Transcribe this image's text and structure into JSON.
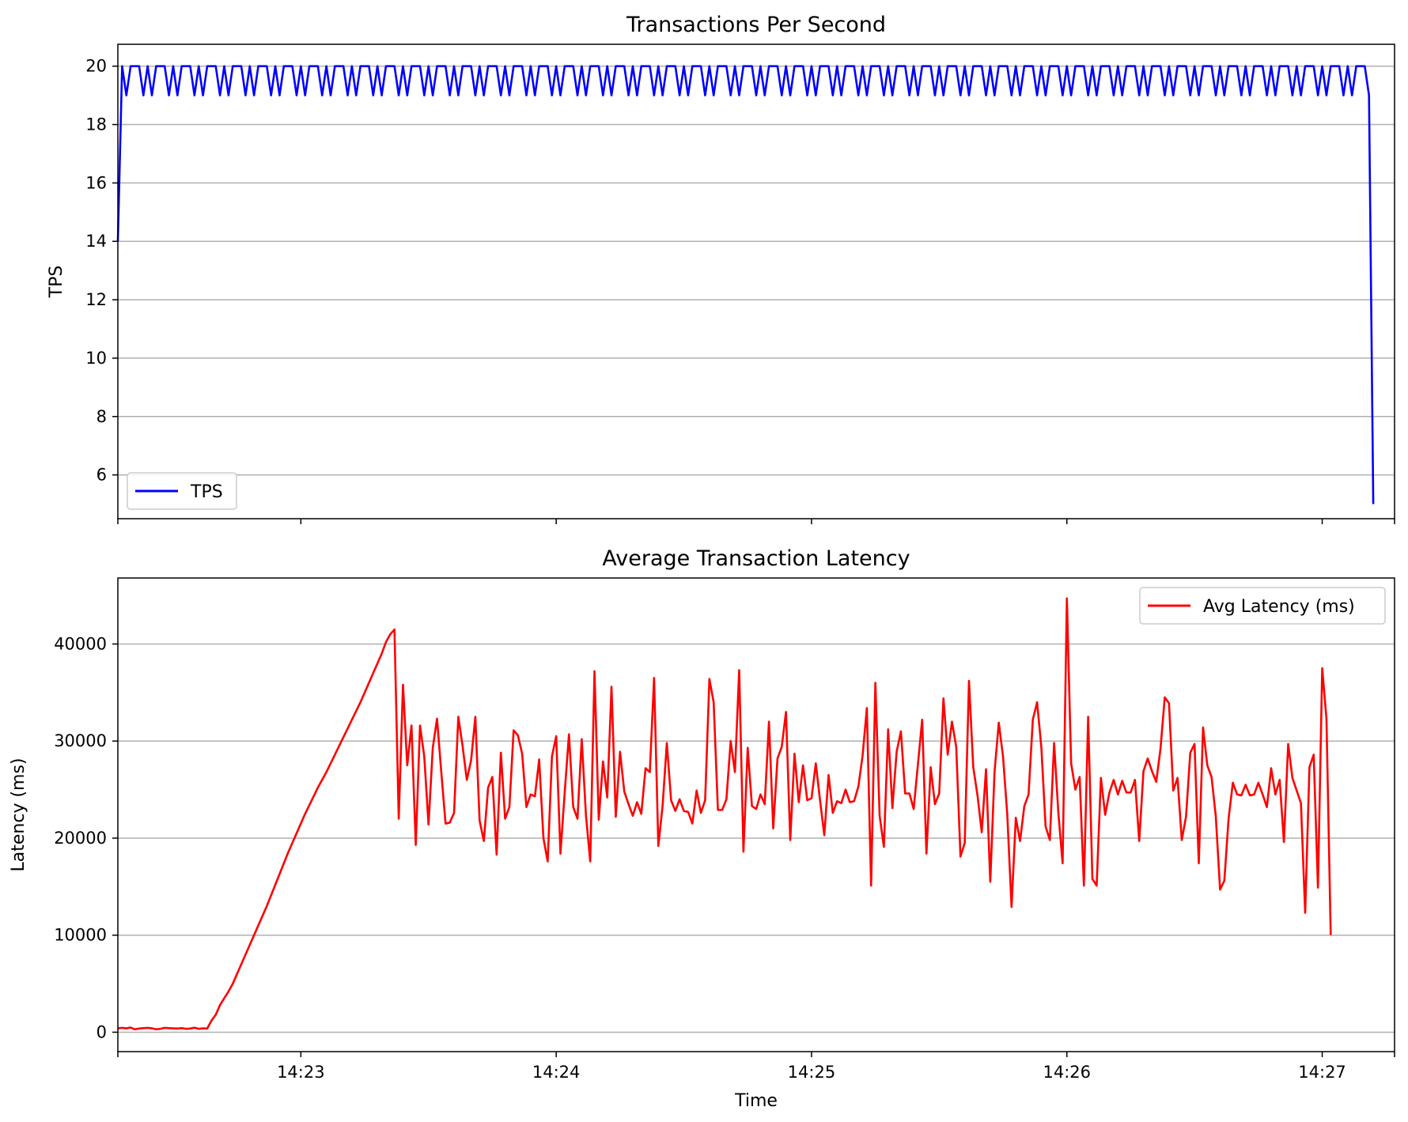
{
  "chart_data": [
    {
      "type": "line",
      "title": "Transactions Per Second",
      "xlabel": "",
      "ylabel": "TPS",
      "ylim": [
        4.5,
        20.75
      ],
      "yticks": [
        6,
        8,
        10,
        12,
        14,
        16,
        18,
        20
      ],
      "xlim": [
        "14:22:17",
        "14:27:17"
      ],
      "xticks": [
        "14:23",
        "14:24",
        "14:25",
        "14:26",
        "14:27"
      ],
      "grid": "horizontal",
      "legend_position": "lower-left",
      "series": [
        {
          "name": "TPS",
          "color": "#0000ff",
          "start": "14:22:17",
          "step_seconds": 1,
          "values": [
            14,
            20,
            19,
            20,
            20,
            20,
            19,
            20,
            19,
            20,
            20,
            20,
            19,
            20,
            19,
            20,
            20,
            20,
            19,
            20,
            19,
            20,
            20,
            20,
            19,
            20,
            19,
            20,
            20,
            20,
            19,
            20,
            19,
            20,
            20,
            20,
            19,
            20,
            19,
            20,
            20,
            20,
            19,
            20,
            19,
            20,
            20,
            20,
            19,
            20,
            19,
            20,
            20,
            20,
            19,
            20,
            19,
            20,
            20,
            20,
            19,
            20,
            19,
            20,
            20,
            20,
            19,
            20,
            19,
            20,
            20,
            20,
            19,
            20,
            19,
            20,
            20,
            20,
            19,
            20,
            19,
            20,
            20,
            20,
            19,
            20,
            19,
            20,
            20,
            20,
            19,
            20,
            19,
            20,
            20,
            20,
            19,
            20,
            19,
            20,
            20,
            20,
            19,
            20,
            19,
            20,
            20,
            20,
            19,
            20,
            19,
            20,
            20,
            20,
            19,
            20,
            19,
            20,
            20,
            20,
            19,
            20,
            19,
            20,
            20,
            20,
            19,
            20,
            19,
            20,
            20,
            20,
            19,
            20,
            19,
            20,
            20,
            20,
            19,
            20,
            19,
            20,
            20,
            20,
            19,
            20,
            19,
            20,
            20,
            20,
            19,
            20,
            19,
            20,
            20,
            20,
            19,
            20,
            19,
            20,
            20,
            20,
            19,
            20,
            19,
            20,
            20,
            20,
            19,
            20,
            19,
            20,
            20,
            20,
            19,
            20,
            19,
            20,
            20,
            20,
            19,
            20,
            19,
            20,
            20,
            20,
            19,
            20,
            19,
            20,
            20,
            20,
            19,
            20,
            19,
            20,
            20,
            20,
            19,
            20,
            19,
            20,
            20,
            20,
            19,
            20,
            19,
            20,
            20,
            20,
            19,
            20,
            19,
            20,
            20,
            20,
            19,
            20,
            19,
            20,
            20,
            20,
            19,
            20,
            19,
            20,
            20,
            20,
            19,
            20,
            19,
            20,
            20,
            20,
            19,
            20,
            19,
            20,
            20,
            20,
            19,
            20,
            19,
            20,
            20,
            20,
            19,
            20,
            19,
            20,
            20,
            20,
            19,
            20,
            19,
            20,
            20,
            20,
            19,
            20,
            19,
            20,
            20,
            20,
            19,
            20,
            19,
            20,
            20,
            20,
            19,
            20,
            19,
            20,
            20,
            20,
            19,
            20,
            19,
            20,
            20,
            20,
            19,
            20,
            19,
            20,
            20,
            20,
            19,
            20,
            19,
            20,
            20,
            20,
            19,
            5
          ]
        }
      ]
    },
    {
      "type": "line",
      "title": "Average Transaction Latency",
      "xlabel": "Time",
      "ylabel": "Latency (ms)",
      "ylim": [
        -2000,
        46800
      ],
      "yticks": [
        0,
        10000,
        20000,
        30000,
        40000
      ],
      "xlim": [
        "14:22:17",
        "14:27:17"
      ],
      "xticks": [
        "14:23",
        "14:24",
        "14:25",
        "14:26",
        "14:27"
      ],
      "grid": "horizontal",
      "legend_position": "upper-right",
      "series": [
        {
          "name": "Avg Latency (ms)",
          "color": "#ff0000",
          "start": "14:22:17",
          "step_seconds": 1,
          "values": [
            400,
            450,
            400,
            480,
            300,
            380,
            420,
            450,
            400,
            300,
            350,
            450,
            420,
            400,
            380,
            420,
            350,
            380,
            460,
            350,
            400,
            380,
            1200,
            1800,
            2800,
            3500,
            4200,
            5000,
            6000,
            7000,
            8000,
            9000,
            10000,
            11000,
            12000,
            13000,
            14100,
            15200,
            16300,
            17400,
            18500,
            19500,
            20500,
            21500,
            22500,
            23400,
            24300,
            25200,
            26000,
            26800,
            27700,
            28600,
            29500,
            30400,
            31300,
            32200,
            33100,
            34000,
            35000,
            36000,
            37000,
            38000,
            39000,
            40200,
            41000,
            41500,
            22000,
            35800,
            27500,
            31600,
            19300,
            31600,
            28400,
            21400,
            29300,
            32300,
            26800,
            21500,
            21600,
            22600,
            32500,
            29500,
            26000,
            28000,
            32500,
            21800,
            19700,
            25200,
            26300,
            18300,
            28800,
            22000,
            23200,
            31100,
            30600,
            28700,
            23200,
            24500,
            24300,
            28100,
            20000,
            17600,
            28400,
            30500,
            18400,
            24700,
            30700,
            23200,
            22000,
            30200,
            22300,
            17600,
            37200,
            21900,
            27900,
            24200,
            35600,
            22200,
            28900,
            24800,
            23500,
            22300,
            23700,
            22500,
            27200,
            26800,
            36500,
            19200,
            23300,
            29800,
            23900,
            22800,
            24000,
            22800,
            22700,
            21500,
            24900,
            22600,
            23900,
            36400,
            34000,
            22900,
            22900,
            24000,
            30000,
            26800,
            37300,
            18600,
            29300,
            23300,
            23000,
            24500,
            23500,
            32000,
            21000,
            28200,
            29400,
            33000,
            19800,
            28700,
            23700,
            27500,
            23900,
            24100,
            27700,
            23900,
            20300,
            26500,
            22600,
            23800,
            23600,
            25000,
            23700,
            23800,
            25300,
            28500,
            33400,
            15100,
            36000,
            22300,
            19100,
            31200,
            23100,
            28900,
            31000,
            24600,
            24600,
            23000,
            27600,
            32200,
            18400,
            27300,
            23500,
            24600,
            34400,
            28600,
            32000,
            29400,
            18100,
            19500,
            36200,
            27300,
            24400,
            20600,
            27100,
            15500,
            26800,
            31900,
            28400,
            22400,
            12900,
            22100,
            19700,
            23300,
            24500,
            32200,
            34000,
            29400,
            21200,
            19800,
            29800,
            22600,
            17400,
            44700,
            27700,
            25000,
            26300,
            15100,
            32500,
            15800,
            15100,
            26200,
            22400,
            24700,
            26000,
            24500,
            25900,
            24700,
            24700,
            26000,
            19700,
            26900,
            28200,
            26900,
            25800,
            29200,
            34500,
            33900,
            24900,
            26200,
            19800,
            22200,
            28800,
            29700,
            17400,
            31400,
            27500,
            26300,
            22200,
            14700,
            15600,
            22000,
            25700,
            24500,
            24400,
            25500,
            24400,
            24500,
            25700,
            24500,
            23200,
            27200,
            24500,
            26000,
            19600,
            29700,
            26200,
            24900,
            23600,
            12300,
            27300,
            28600,
            14900,
            37500,
            32300,
            10000
          ]
        }
      ]
    }
  ]
}
